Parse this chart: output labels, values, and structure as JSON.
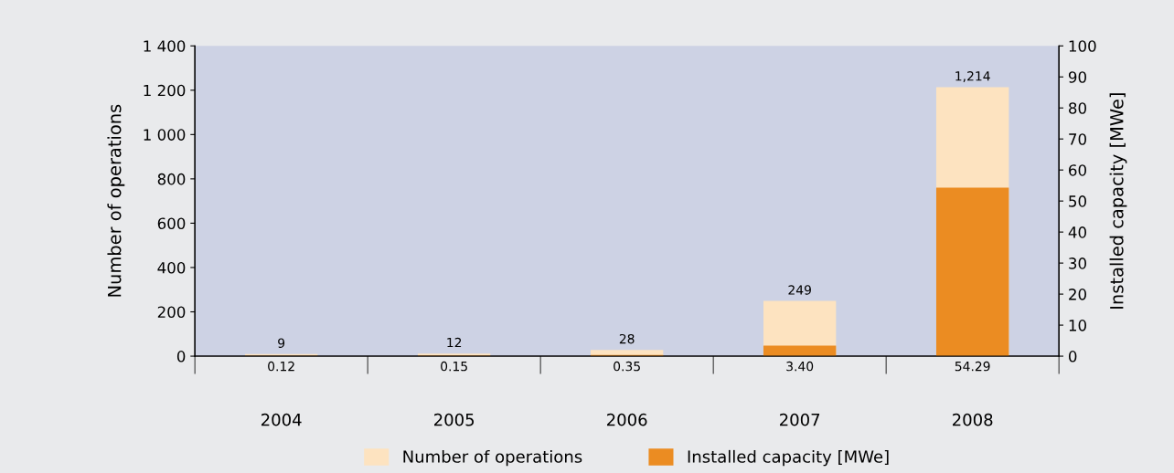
{
  "chart_data": {
    "type": "bar",
    "categories": [
      "2004",
      "2005",
      "2006",
      "2007",
      "2008"
    ],
    "ylabel": "Number of operations",
    "y2label": "Installed capacity [MWe]",
    "series": [
      {
        "name": "Number of operations",
        "color": "#fde3c0",
        "values": [
          9,
          12,
          28,
          249,
          1214
        ],
        "value_labels": [
          "9",
          "12",
          "28",
          "249",
          "1,214"
        ]
      },
      {
        "name": "Installed capacity [MWe]",
        "axis": "y2",
        "color": "#eb8c22",
        "values": [
          0.12,
          0.15,
          0.35,
          3.4,
          54.29
        ],
        "value_labels": [
          "0.12",
          "0.15",
          "0.35",
          "3.40",
          "54.29"
        ]
      }
    ],
    "ylim": [
      0,
      1400
    ],
    "yticks": [
      0,
      200,
      400,
      600,
      800,
      {
        "value": 1000,
        "label": "1 000"
      },
      {
        "value": 1200,
        "label": "1 200"
      },
      {
        "value": 1400,
        "label": "1 400"
      }
    ],
    "y2lim": [
      0,
      100
    ],
    "y2ticks": [
      0,
      10,
      20,
      30,
      40,
      50,
      60,
      70,
      80,
      90,
      100
    ],
    "grid": false,
    "legend": "bottom"
  }
}
